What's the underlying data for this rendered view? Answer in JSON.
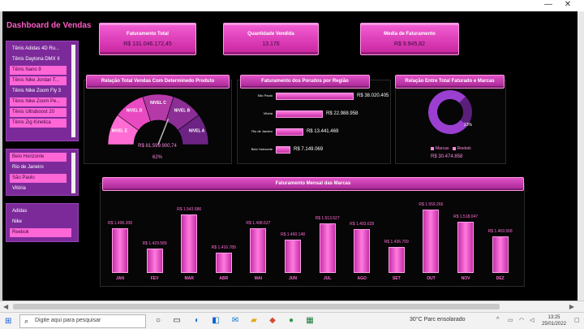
{
  "window": {
    "minimize": "—",
    "close": "✕"
  },
  "dashboard": {
    "title": "Dashboard de Vendas"
  },
  "slicer_products": {
    "items": [
      {
        "label": "Tênis Adidas 4D Ru...",
        "selected": false
      },
      {
        "label": "Tênis Daytona DMX II",
        "selected": false
      },
      {
        "label": "Tênis Nano 9",
        "selected": true
      },
      {
        "label": "Tênis Nike Jordan T...",
        "selected": true
      },
      {
        "label": "Tênis Nike Zoom Fly 3",
        "selected": false
      },
      {
        "label": "Tênis Nike Zoom Pe...",
        "selected": true
      },
      {
        "label": "Tênis Ultraboost 20",
        "selected": true
      },
      {
        "label": "Tênis Zig Kinetica",
        "selected": true
      }
    ]
  },
  "slicer_cities": {
    "items": [
      {
        "label": "Belo Horizonte",
        "selected": true
      },
      {
        "label": "Rio de Janeiro",
        "selected": false
      },
      {
        "label": "São Paulo",
        "selected": true
      },
      {
        "label": "Vitória",
        "selected": false
      }
    ]
  },
  "slicer_brands": {
    "items": [
      {
        "label": "Adidas",
        "selected": false
      },
      {
        "label": "Nike",
        "selected": false
      },
      {
        "label": "Reebok",
        "selected": true
      }
    ]
  },
  "kpis": [
    {
      "label": "Faturamento Total",
      "value": "R$ 131.046.172,45"
    },
    {
      "label": "Quantidade Vendida",
      "value": "13.176"
    },
    {
      "label": "Media de Faturamento",
      "value": "R$ 9.945,82"
    }
  ],
  "gauge": {
    "title": "Relação Total Vendas Com Determinedo Produto",
    "levels": [
      "NIVEL E",
      "NIVEL D",
      "NIVEL C",
      "NIVEL B",
      "NIVEL A"
    ],
    "value_text": "R$ 81.599.900,74",
    "percent_text": "62%",
    "percent": 62
  },
  "regions": {
    "title": "Faturamento dos Porudos por Região",
    "rows": [
      {
        "name": "São Paulo",
        "value": 38020405,
        "label": "R$ 38.020.405"
      },
      {
        "name": "Vitória",
        "value": 22988958,
        "label": "R$ 22.988.958"
      },
      {
        "name": "Rio de Janeiro",
        "value": 13441469,
        "label": "R$ 13.441.469"
      },
      {
        "name": "Belo Horizonte",
        "value": 7149069,
        "label": "R$ 7.149.069"
      }
    ]
  },
  "donut": {
    "title": "Relação Entre Total Faturado e Marcas",
    "legend": [
      "Marcas",
      "Reebok"
    ],
    "percent_label": "23%",
    "percent": 23,
    "total": "R$ 30.474.858",
    "colors": {
      "main": "#9b3fd1",
      "slice": "#5a1f7a"
    }
  },
  "chart_data": {
    "type": "bar",
    "title": "Faturamento Mensal das Marcas",
    "categories": [
      "JAN",
      "FEV",
      "MAR",
      "ABR",
      "MAI",
      "JUN",
      "JUL",
      "AGO",
      "SET",
      "OUT",
      "NOV",
      "DEZ"
    ],
    "values": [
      1496308,
      1429589,
      1543686,
      1416789,
      1498627,
      1460148,
      1513527,
      1493628,
      1436709,
      1559266,
      1518047,
      1469568
    ],
    "labels": [
      "R$ 1.496.308",
      "R$ 1.429.589",
      "R$ 1.543.686",
      "R$ 1.416.789",
      "R$ 1.498.627",
      "R$ 1.460.148",
      "R$ 1.513.527",
      "R$ 1.493.628",
      "R$ 1.436.709",
      "R$ 1.559.266",
      "R$ 1.518.047",
      "R$ 1.469.568"
    ],
    "ylim": [
      1350000,
      1570000
    ],
    "grid": false
  },
  "taskbar": {
    "search_placeholder": "Digite aqui para pesquisar",
    "weather": "30°C  Parc ensolarado",
    "time": "13:25",
    "date": "25/01/2022"
  }
}
